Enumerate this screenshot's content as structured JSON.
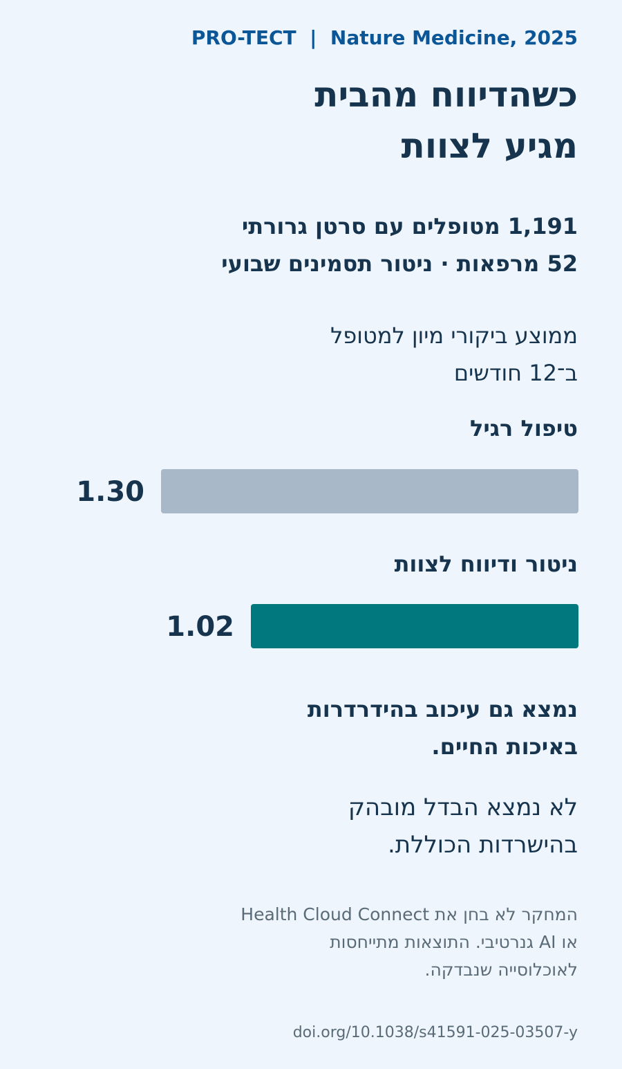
{
  "header": "PRO-TECT  |  Nature Medicine, 2025",
  "title": [
    "כשהדיווח מהבית",
    "מגיע לצוות"
  ],
  "stats": [
    "1,191 מטופלים עם סרטן גרורתי",
    "52 מרפאות · ניטור תסמינים שבועי"
  ],
  "metric_label": [
    "ממוצע ביקורי מיון למטופל",
    "ב־12 חודשים"
  ],
  "chart_data": {
    "type": "bar",
    "orientation": "horizontal",
    "categories": [
      "טיפול רגיל",
      "ניטור ודיווח לצוות"
    ],
    "values": [
      1.3,
      1.02
    ],
    "value_labels": [
      "1.30",
      "1.02"
    ],
    "colors": [
      "#a9b8c9",
      "#00787e"
    ],
    "title": "",
    "xlabel": "",
    "ylabel": "",
    "grid": false
  },
  "finding_bold": [
    "נמצא גם עיכוב בהידרדרות",
    "באיכות החיים."
  ],
  "finding_regular": [
    "לא נמצא הבדל מובהק",
    "בהישרדות הכוללת."
  ],
  "disclaimer": [
    "המחקר לא בחן את Health Cloud Connect",
    "או AI גנרטיבי. התוצאות מתייחסות",
    "לאוכלוסייה שנבדקה."
  ],
  "doi": "doi.org/10.1038/s41591-025-03507-y"
}
